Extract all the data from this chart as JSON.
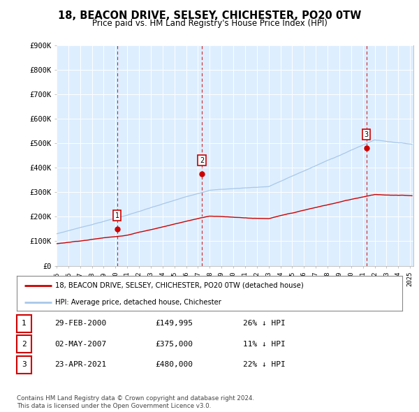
{
  "title": "18, BEACON DRIVE, SELSEY, CHICHESTER, PO20 0TW",
  "subtitle": "Price paid vs. HM Land Registry's House Price Index (HPI)",
  "ylabel_ticks": [
    "£0",
    "£100K",
    "£200K",
    "£300K",
    "£400K",
    "£500K",
    "£600K",
    "£700K",
    "£800K",
    "£900K"
  ],
  "ylim": [
    0,
    900000
  ],
  "xlim_start": 1995.0,
  "xlim_end": 2025.3,
  "sale_dates": [
    2000.15,
    2007.33,
    2021.3
  ],
  "sale_prices": [
    149995,
    375000,
    480000
  ],
  "sale_labels": [
    "1",
    "2",
    "3"
  ],
  "legend_line1": "18, BEACON DRIVE, SELSEY, CHICHESTER, PO20 0TW (detached house)",
  "legend_line2": "HPI: Average price, detached house, Chichester",
  "table_rows": [
    [
      "1",
      "29-FEB-2000",
      "£149,995",
      "26% ↓ HPI"
    ],
    [
      "2",
      "02-MAY-2007",
      "£375,000",
      "11% ↓ HPI"
    ],
    [
      "3",
      "23-APR-2021",
      "£480,000",
      "22% ↓ HPI"
    ]
  ],
  "footnote": "Contains HM Land Registry data © Crown copyright and database right 2024.\nThis data is licensed under the Open Government Licence v3.0.",
  "hpi_color": "#a8c8e8",
  "price_color": "#cc0000",
  "vline_color": "#cc0000",
  "grid_color": "#cccccc",
  "chart_bg": "#ddeeff",
  "background_color": "#ffffff"
}
